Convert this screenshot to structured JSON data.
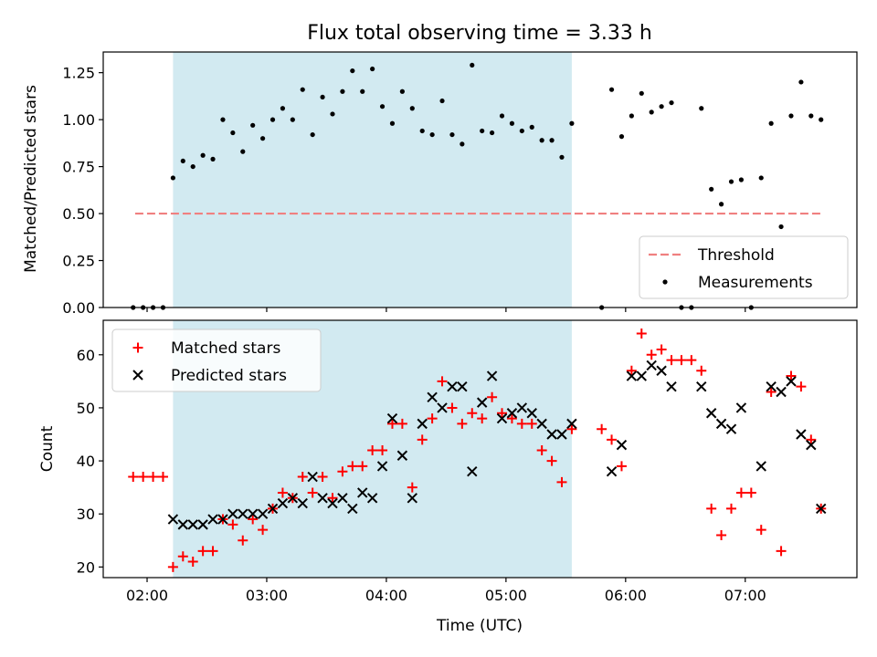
{
  "chart_data": [
    {
      "type": "scatter",
      "title": "Flux total observing time = 3.33 h",
      "ylabel": "Matched/Predicted stars",
      "xlabel": "",
      "xlim": [
        "01:38",
        "07:56"
      ],
      "ylim": [
        0,
        1.36
      ],
      "yticks": [
        0.0,
        0.25,
        0.5,
        0.75,
        1.0,
        1.25
      ],
      "yticklabels": [
        "0.00",
        "0.25",
        "0.50",
        "0.75",
        "1.00",
        "1.25"
      ],
      "xticks": [
        "02:00",
        "03:00",
        "04:00",
        "05:00",
        "06:00",
        "07:00"
      ],
      "shaded_region": {
        "start": "02:13",
        "end": "05:33",
        "color": "#add8e6"
      },
      "legend": {
        "location": "lower right",
        "entries": [
          "Threshold",
          "Measurements"
        ]
      },
      "threshold": {
        "name": "Threshold",
        "value": 0.5,
        "x_start": "01:54",
        "x_end": "07:38",
        "color": "#f08080",
        "style": "dashed"
      },
      "series": [
        {
          "name": "Measurements",
          "color": "#000000",
          "marker": "dot",
          "points": [
            [
              "01:53",
              0.0
            ],
            [
              "01:58",
              0.0
            ],
            [
              "02:03",
              0.0
            ],
            [
              "02:08",
              0.0
            ],
            [
              "02:13",
              0.69
            ],
            [
              "02:18",
              0.78
            ],
            [
              "02:23",
              0.75
            ],
            [
              "02:28",
              0.81
            ],
            [
              "02:33",
              0.79
            ],
            [
              "02:38",
              1.0
            ],
            [
              "02:43",
              0.93
            ],
            [
              "02:48",
              0.83
            ],
            [
              "02:53",
              0.97
            ],
            [
              "02:58",
              0.9
            ],
            [
              "03:03",
              1.0
            ],
            [
              "03:08",
              1.06
            ],
            [
              "03:13",
              1.0
            ],
            [
              "03:18",
              1.16
            ],
            [
              "03:23",
              0.92
            ],
            [
              "03:28",
              1.12
            ],
            [
              "03:33",
              1.03
            ],
            [
              "03:38",
              1.15
            ],
            [
              "03:43",
              1.26
            ],
            [
              "03:48",
              1.15
            ],
            [
              "03:53",
              1.27
            ],
            [
              "03:58",
              1.07
            ],
            [
              "04:03",
              0.98
            ],
            [
              "04:08",
              1.15
            ],
            [
              "04:13",
              1.06
            ],
            [
              "04:18",
              0.94
            ],
            [
              "04:23",
              0.92
            ],
            [
              "04:28",
              1.1
            ],
            [
              "04:33",
              0.92
            ],
            [
              "04:38",
              0.87
            ],
            [
              "04:43",
              1.29
            ],
            [
              "04:48",
              0.94
            ],
            [
              "04:53",
              0.93
            ],
            [
              "04:58",
              1.02
            ],
            [
              "05:03",
              0.98
            ],
            [
              "05:08",
              0.94
            ],
            [
              "05:13",
              0.96
            ],
            [
              "05:18",
              0.89
            ],
            [
              "05:23",
              0.89
            ],
            [
              "05:28",
              0.8
            ],
            [
              "05:33",
              0.98
            ],
            [
              "05:48",
              0.0
            ],
            [
              "05:53",
              1.16
            ],
            [
              "05:58",
              0.91
            ],
            [
              "06:03",
              1.02
            ],
            [
              "06:08",
              1.14
            ],
            [
              "06:13",
              1.04
            ],
            [
              "06:18",
              1.07
            ],
            [
              "06:23",
              1.09
            ],
            [
              "06:28",
              0.0
            ],
            [
              "06:33",
              0.0
            ],
            [
              "06:38",
              1.06
            ],
            [
              "06:43",
              0.63
            ],
            [
              "06:48",
              0.55
            ],
            [
              "06:53",
              0.67
            ],
            [
              "06:58",
              0.68
            ],
            [
              "07:03",
              0.0
            ],
            [
              "07:08",
              0.69
            ],
            [
              "07:13",
              0.98
            ],
            [
              "07:18",
              0.43
            ],
            [
              "07:23",
              1.02
            ],
            [
              "07:28",
              1.2
            ],
            [
              "07:33",
              1.02
            ],
            [
              "07:38",
              1.0
            ]
          ]
        }
      ]
    },
    {
      "type": "scatter",
      "title": "",
      "ylabel": "Count",
      "xlabel": "Time (UTC)",
      "xlim": [
        "01:38",
        "07:56"
      ],
      "ylim": [
        18,
        66.5
      ],
      "yticks": [
        20,
        30,
        40,
        50,
        60
      ],
      "yticklabels": [
        "20",
        "30",
        "40",
        "50",
        "60"
      ],
      "xticks": [
        "02:00",
        "03:00",
        "04:00",
        "05:00",
        "06:00",
        "07:00"
      ],
      "xticklabels": [
        "02:00",
        "03:00",
        "04:00",
        "05:00",
        "06:00",
        "07:00"
      ],
      "shaded_region": {
        "start": "02:13",
        "end": "05:33",
        "color": "#add8e6"
      },
      "legend": {
        "location": "upper left",
        "entries": [
          "Matched stars",
          "Predicted stars"
        ]
      },
      "series": [
        {
          "name": "Matched stars",
          "color": "#ff0000",
          "marker": "plus",
          "points": [
            [
              "01:53",
              37
            ],
            [
              "01:58",
              37
            ],
            [
              "02:03",
              37
            ],
            [
              "02:08",
              37
            ],
            [
              "02:13",
              20
            ],
            [
              "02:18",
              22
            ],
            [
              "02:23",
              21
            ],
            [
              "02:28",
              23
            ],
            [
              "02:33",
              23
            ],
            [
              "02:38",
              29
            ],
            [
              "02:43",
              28
            ],
            [
              "02:48",
              25
            ],
            [
              "02:53",
              29
            ],
            [
              "02:58",
              27
            ],
            [
              "03:03",
              31
            ],
            [
              "03:08",
              34
            ],
            [
              "03:13",
              33
            ],
            [
              "03:18",
              37
            ],
            [
              "03:23",
              34
            ],
            [
              "03:28",
              37
            ],
            [
              "03:33",
              33
            ],
            [
              "03:38",
              38
            ],
            [
              "03:43",
              39
            ],
            [
              "03:48",
              39
            ],
            [
              "03:53",
              42
            ],
            [
              "03:58",
              42
            ],
            [
              "04:03",
              47
            ],
            [
              "04:08",
              47
            ],
            [
              "04:13",
              35
            ],
            [
              "04:18",
              44
            ],
            [
              "04:23",
              48
            ],
            [
              "04:28",
              55
            ],
            [
              "04:33",
              50
            ],
            [
              "04:38",
              47
            ],
            [
              "04:43",
              49
            ],
            [
              "04:48",
              48
            ],
            [
              "04:53",
              52
            ],
            [
              "04:58",
              49
            ],
            [
              "05:03",
              48
            ],
            [
              "05:08",
              47
            ],
            [
              "05:13",
              47
            ],
            [
              "05:18",
              42
            ],
            [
              "05:23",
              40
            ],
            [
              "05:28",
              36
            ],
            [
              "05:33",
              46
            ],
            [
              "05:48",
              46
            ],
            [
              "05:53",
              44
            ],
            [
              "05:58",
              39
            ],
            [
              "06:03",
              57
            ],
            [
              "06:08",
              64
            ],
            [
              "06:13",
              60
            ],
            [
              "06:18",
              61
            ],
            [
              "06:23",
              59
            ],
            [
              "06:28",
              59
            ],
            [
              "06:33",
              59
            ],
            [
              "06:38",
              57
            ],
            [
              "06:43",
              31
            ],
            [
              "06:48",
              26
            ],
            [
              "06:53",
              31
            ],
            [
              "06:58",
              34
            ],
            [
              "07:03",
              34
            ],
            [
              "07:08",
              27
            ],
            [
              "07:13",
              53
            ],
            [
              "07:18",
              23
            ],
            [
              "07:23",
              56
            ],
            [
              "07:28",
              54
            ],
            [
              "07:33",
              44
            ],
            [
              "07:38",
              31
            ]
          ]
        },
        {
          "name": "Predicted stars",
          "color": "#000000",
          "marker": "cross",
          "points": [
            [
              "02:13",
              29
            ],
            [
              "02:18",
              28
            ],
            [
              "02:23",
              28
            ],
            [
              "02:28",
              28
            ],
            [
              "02:33",
              29
            ],
            [
              "02:38",
              29
            ],
            [
              "02:43",
              30
            ],
            [
              "02:48",
              30
            ],
            [
              "02:53",
              30
            ],
            [
              "02:58",
              30
            ],
            [
              "03:03",
              31
            ],
            [
              "03:08",
              32
            ],
            [
              "03:13",
              33
            ],
            [
              "03:18",
              32
            ],
            [
              "03:23",
              37
            ],
            [
              "03:28",
              33
            ],
            [
              "03:33",
              32
            ],
            [
              "03:38",
              33
            ],
            [
              "03:43",
              31
            ],
            [
              "03:48",
              34
            ],
            [
              "03:53",
              33
            ],
            [
              "03:58",
              39
            ],
            [
              "04:03",
              48
            ],
            [
              "04:08",
              41
            ],
            [
              "04:13",
              33
            ],
            [
              "04:18",
              47
            ],
            [
              "04:23",
              52
            ],
            [
              "04:28",
              50
            ],
            [
              "04:33",
              54
            ],
            [
              "04:38",
              54
            ],
            [
              "04:43",
              38
            ],
            [
              "04:48",
              51
            ],
            [
              "04:53",
              56
            ],
            [
              "04:58",
              48
            ],
            [
              "05:03",
              49
            ],
            [
              "05:08",
              50
            ],
            [
              "05:13",
              49
            ],
            [
              "05:18",
              47
            ],
            [
              "05:23",
              45
            ],
            [
              "05:28",
              45
            ],
            [
              "05:33",
              47
            ],
            [
              "05:53",
              38
            ],
            [
              "05:58",
              43
            ],
            [
              "06:03",
              56
            ],
            [
              "06:08",
              56
            ],
            [
              "06:13",
              58
            ],
            [
              "06:18",
              57
            ],
            [
              "06:23",
              54
            ],
            [
              "06:38",
              54
            ],
            [
              "06:43",
              49
            ],
            [
              "06:48",
              47
            ],
            [
              "06:53",
              46
            ],
            [
              "06:58",
              50
            ],
            [
              "07:08",
              39
            ],
            [
              "07:13",
              54
            ],
            [
              "07:18",
              53
            ],
            [
              "07:23",
              55
            ],
            [
              "07:28",
              45
            ],
            [
              "07:33",
              43
            ],
            [
              "07:38",
              31
            ]
          ]
        }
      ]
    }
  ]
}
